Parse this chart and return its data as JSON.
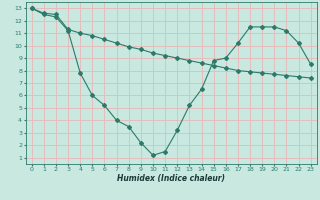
{
  "xlabel": "Humidex (Indice chaleur)",
  "background_color": "#c8e8e0",
  "grid_color": "#e8b8b8",
  "line_color": "#2d7a6a",
  "line1_x": [
    0,
    1,
    2,
    3,
    4,
    5,
    6,
    7,
    8,
    9,
    10,
    11,
    12,
    13,
    14,
    15,
    16,
    17,
    18,
    19,
    20,
    21,
    22,
    23
  ],
  "line1_y": [
    13,
    12.6,
    12.5,
    11.3,
    11.0,
    10.8,
    10.5,
    10.2,
    9.9,
    9.7,
    9.4,
    9.2,
    9.0,
    8.8,
    8.6,
    8.4,
    8.2,
    8.0,
    7.9,
    7.8,
    7.7,
    7.6,
    7.5,
    7.4
  ],
  "line2_x": [
    0,
    1,
    2,
    3,
    4,
    5,
    6,
    7,
    8,
    9,
    10,
    11,
    12,
    13,
    14,
    15,
    16,
    17,
    18,
    19,
    20,
    21,
    22,
    23
  ],
  "line2_y": [
    13,
    12.5,
    12.3,
    11.2,
    7.8,
    6.0,
    5.2,
    4.0,
    3.5,
    2.2,
    1.2,
    1.5,
    3.2,
    5.2,
    6.5,
    8.8,
    9.0,
    10.2,
    11.5,
    11.5,
    11.5,
    11.2,
    10.2,
    8.5
  ],
  "ylim": [
    0.5,
    13.5
  ],
  "xlim": [
    -0.5,
    23.5
  ],
  "yticks": [
    1,
    2,
    3,
    4,
    5,
    6,
    7,
    8,
    9,
    10,
    11,
    12,
    13
  ],
  "xticks": [
    0,
    1,
    2,
    3,
    4,
    5,
    6,
    7,
    8,
    9,
    10,
    11,
    12,
    13,
    14,
    15,
    16,
    17,
    18,
    19,
    20,
    21,
    22,
    23
  ],
  "marker": "D",
  "markersize": 2,
  "linewidth": 0.8
}
